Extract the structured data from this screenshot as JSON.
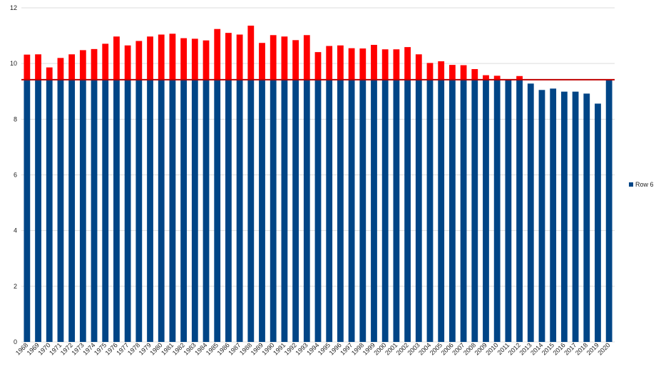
{
  "chart_data": {
    "type": "bar",
    "categories": [
      "1968",
      "1969",
      "1970",
      "1971",
      "1972",
      "1973",
      "1974",
      "1975",
      "1976",
      "1977",
      "1978",
      "1979",
      "1980",
      "1981",
      "1982",
      "1983",
      "1984",
      "1985",
      "1986",
      "1987",
      "1988",
      "1989",
      "1990",
      "1991",
      "1992",
      "1993",
      "1994",
      "1995",
      "1996",
      "1997",
      "1998",
      "1999",
      "2000",
      "2001",
      "2002",
      "2003",
      "2004",
      "2005",
      "2006",
      "2007",
      "2008",
      "2009",
      "2010",
      "2011",
      "2012",
      "2013",
      "2014",
      "2015",
      "2016",
      "2017",
      "2018",
      "2019",
      "2020"
    ],
    "series": [
      {
        "name": "Row 6",
        "values": [
          10.32,
          10.33,
          9.86,
          10.2,
          10.33,
          10.48,
          10.52,
          10.71,
          10.97,
          10.65,
          10.81,
          10.97,
          11.04,
          11.07,
          10.91,
          10.89,
          10.83,
          11.24,
          11.1,
          11.04,
          11.36,
          10.74,
          11.02,
          10.97,
          10.84,
          11.02,
          10.41,
          10.63,
          10.65,
          10.55,
          10.54,
          10.67,
          10.51,
          10.51,
          10.59,
          10.33,
          10.02,
          10.08,
          9.95,
          9.94,
          9.8,
          9.58,
          9.56,
          9.43,
          9.55,
          9.28,
          9.05,
          9.1,
          8.99,
          8.99,
          8.92,
          8.56,
          9.42
        ]
      }
    ],
    "threshold": 9.42,
    "ylim": [
      0,
      12
    ],
    "yticks": [
      0,
      2,
      4,
      6,
      8,
      10,
      12
    ],
    "grid": true,
    "legend_position": "right",
    "colors": {
      "below": "#004586",
      "above": "#ff0000",
      "threshold_line": "#c00000",
      "grid": "#dddddd"
    }
  }
}
